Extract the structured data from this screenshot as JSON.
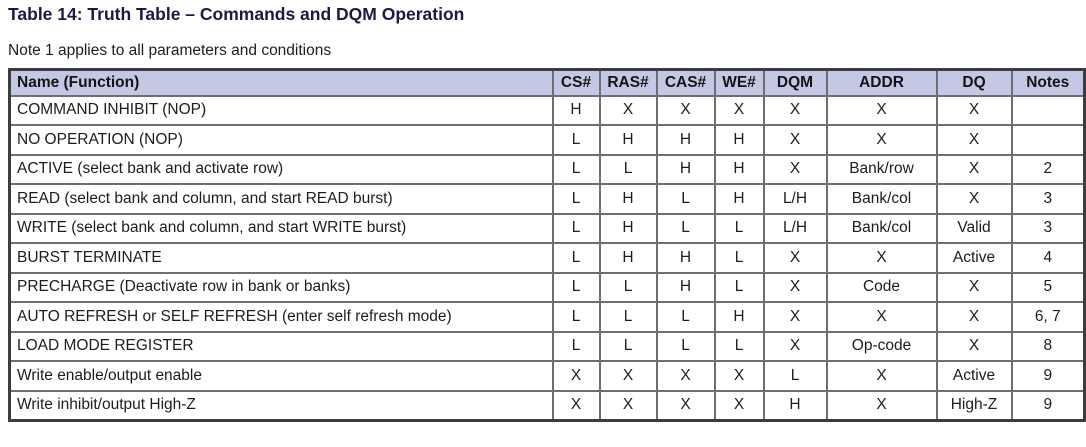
{
  "title": "Table 14: Truth Table – Commands and DQM Operation",
  "note": "Note 1 applies to all parameters and conditions",
  "colors": {
    "title_color": "#1a1a45",
    "text_color": "#1d1d20",
    "header_bg": "#c5c8e5",
    "border_outer": "#3c3d40",
    "border_inner": "#6e6f72"
  },
  "table": {
    "columns": [
      "Name (Function)",
      "CS#",
      "RAS#",
      "CAS#",
      "WE#",
      "DQM",
      "ADDR",
      "DQ",
      "Notes"
    ],
    "rows": [
      {
        "cells": [
          "COMMAND INHIBIT (NOP)",
          "H",
          "X",
          "X",
          "X",
          "X",
          "X",
          "X",
          ""
        ]
      },
      {
        "cells": [
          "NO OPERATION (NOP)",
          "L",
          "H",
          "H",
          "H",
          "X",
          "X",
          "X",
          ""
        ]
      },
      {
        "cells": [
          "ACTIVE (select bank and activate row)",
          "L",
          "L",
          "H",
          "H",
          "X",
          "Bank/row",
          "X",
          "2"
        ]
      },
      {
        "cells": [
          "READ (select bank and column, and start READ burst)",
          "L",
          "H",
          "L",
          "H",
          "L/H",
          "Bank/col",
          "X",
          "3"
        ]
      },
      {
        "cells": [
          "WRITE (select bank and column, and start WRITE burst)",
          "L",
          "H",
          "L",
          "L",
          "L/H",
          "Bank/col",
          "Valid",
          "3"
        ]
      },
      {
        "cells": [
          "BURST TERMINATE",
          "L",
          "H",
          "H",
          "L",
          "X",
          "X",
          "Active",
          "4"
        ]
      },
      {
        "cells": [
          "PRECHARGE (Deactivate row in bank or banks)",
          "L",
          "L",
          "H",
          "L",
          "X",
          "Code",
          "X",
          "5"
        ]
      },
      {
        "cells": [
          "AUTO REFRESH or SELF REFRESH (enter self refresh mode)",
          "L",
          "L",
          "L",
          "H",
          "X",
          "X",
          "X",
          "6, 7"
        ]
      },
      {
        "cells": [
          "LOAD MODE REGISTER",
          "L",
          "L",
          "L",
          "L",
          "X",
          "Op-code",
          "X",
          "8"
        ]
      },
      {
        "cells": [
          "Write enable/output enable",
          "X",
          "X",
          "X",
          "X",
          "L",
          "X",
          "Active",
          "9"
        ]
      },
      {
        "cells": [
          "Write inhibit/output High-Z",
          "X",
          "X",
          "X",
          "X",
          "H",
          "X",
          "High-Z",
          "9"
        ]
      }
    ]
  }
}
